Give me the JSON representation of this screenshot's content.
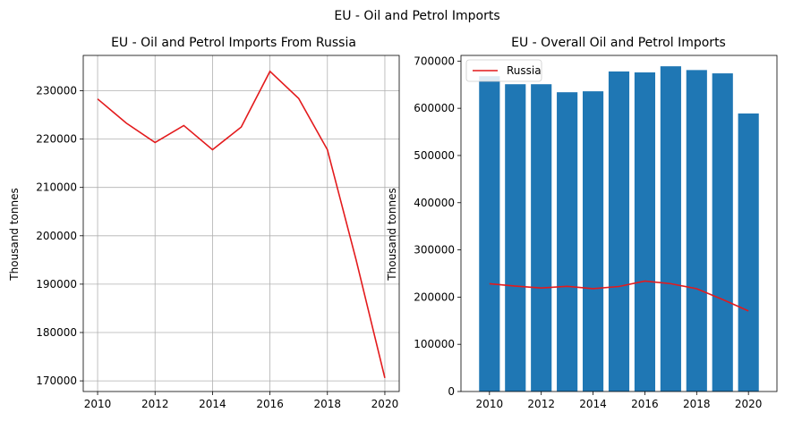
{
  "figure": {
    "suptitle": "EU - Oil and Petrol Imports"
  },
  "colors": {
    "line": "#e31a1c",
    "bar": "#1f77b4",
    "grid": "#b0b0b0",
    "axis": "#000000"
  },
  "chart_data": [
    {
      "type": "line",
      "title": "EU - Oil and Petrol Imports From Russia",
      "xlabel": "",
      "ylabel": "Thousand tonnes",
      "grid": true,
      "xlim": [
        2009.5,
        2020.5
      ],
      "ylim": [
        167800,
        237300
      ],
      "xticks": [
        2010,
        2012,
        2014,
        2016,
        2018,
        2020
      ],
      "yticks": [
        170000,
        180000,
        190000,
        200000,
        210000,
        220000,
        230000
      ],
      "series": [
        {
          "x": [
            2010,
            2011,
            2012,
            2013,
            2014,
            2015,
            2016,
            2017,
            2018,
            2019,
            2020
          ],
          "values": [
            228300,
            223300,
            219300,
            222800,
            217800,
            222500,
            234000,
            228400,
            217800,
            195000,
            170600
          ]
        }
      ]
    },
    {
      "type": "bar",
      "title": "EU - Overall Oil and Petrol Imports",
      "xlabel": "",
      "ylabel": "Thousand tonnes",
      "grid": false,
      "legend_position": "top-left",
      "xlim": [
        2008.9,
        2021.1
      ],
      "ylim": [
        0,
        712000
      ],
      "xticks": [
        2010,
        2012,
        2014,
        2016,
        2018,
        2020
      ],
      "yticks": [
        0,
        100000,
        200000,
        300000,
        400000,
        500000,
        600000,
        700000
      ],
      "categories": [
        2010,
        2011,
        2012,
        2013,
        2014,
        2015,
        2016,
        2017,
        2018,
        2019,
        2020
      ],
      "series": [
        {
          "type": "bar",
          "values": [
            668000,
            651000,
            651000,
            634000,
            636000,
            678000,
            676000,
            689000,
            681000,
            674000,
            589000
          ]
        },
        {
          "name": "Russia",
          "type": "line",
          "values": [
            228300,
            223300,
            219300,
            222800,
            217800,
            222500,
            234000,
            228400,
            217800,
            195000,
            170600
          ]
        }
      ]
    }
  ]
}
